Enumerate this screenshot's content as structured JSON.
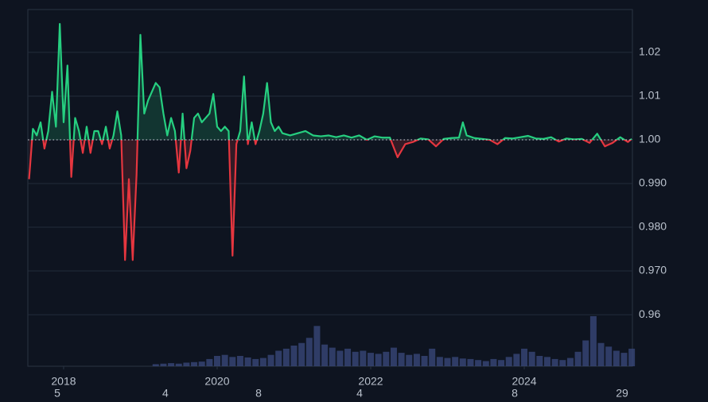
{
  "chart_data": {
    "type": "baseline-area",
    "baseline": 1,
    "color_up": "#26cf80",
    "color_down": "#e5363f",
    "grid": true,
    "xlim": [
      2017.534,
      2025.409
    ],
    "ylim": [
      0.9482,
      1.0298
    ],
    "yticks": [
      0.96,
      {
        "value": 0.97,
        "label": "0.970"
      },
      {
        "value": 0.98,
        "label": "0.980"
      },
      {
        "value": 0.99,
        "label": "0.990"
      },
      {
        "value": 1,
        "label": "1.00"
      },
      1.01,
      1.02
    ],
    "xticks": [
      2018,
      2020,
      2022,
      2024
    ],
    "xticks_minor": [
      {
        "value": 2017.917,
        "label": "5"
      },
      {
        "value": 2019.326,
        "label": "4"
      },
      {
        "value": 2020.539,
        "label": "8"
      },
      {
        "value": 2021.855,
        "label": "4"
      },
      {
        "value": 2023.876,
        "label": "8"
      },
      {
        "value": 2025.275,
        "label": "29"
      }
    ],
    "x": [
      2017.55,
      2017.6,
      2017.65,
      2017.7,
      2017.75,
      2017.8,
      2017.85,
      2017.9,
      2017.95,
      2018.0,
      2018.05,
      2018.1,
      2018.15,
      2018.2,
      2018.25,
      2018.3,
      2018.35,
      2018.4,
      2018.45,
      2018.5,
      2018.55,
      2018.6,
      2018.65,
      2018.7,
      2018.75,
      2018.8,
      2018.85,
      2018.9,
      2018.95,
      2019.0,
      2019.05,
      2019.1,
      2019.15,
      2019.2,
      2019.25,
      2019.3,
      2019.35,
      2019.4,
      2019.45,
      2019.5,
      2019.55,
      2019.6,
      2019.65,
      2019.7,
      2019.75,
      2019.8,
      2019.85,
      2019.9,
      2019.95,
      2020.0,
      2020.05,
      2020.1,
      2020.15,
      2020.2,
      2020.25,
      2020.3,
      2020.35,
      2020.4,
      2020.45,
      2020.5,
      2020.55,
      2020.6,
      2020.65,
      2020.7,
      2020.75,
      2020.8,
      2020.85,
      2020.95,
      2021.05,
      2021.15,
      2021.25,
      2021.35,
      2021.45,
      2021.55,
      2021.65,
      2021.75,
      2021.85,
      2021.95,
      2022.05,
      2022.15,
      2022.25,
      2022.35,
      2022.45,
      2022.55,
      2022.65,
      2022.75,
      2022.85,
      2022.95,
      2023.05,
      2023.15,
      2023.2,
      2023.25,
      2023.35,
      2023.45,
      2023.55,
      2023.65,
      2023.75,
      2023.85,
      2023.95,
      2024.05,
      2024.15,
      2024.25,
      2024.35,
      2024.45,
      2024.55,
      2024.65,
      2024.75,
      2024.85,
      2024.95,
      2025.05,
      2025.15,
      2025.25,
      2025.35,
      2025.4
    ],
    "values": [
      0.991,
      1.0025,
      1.001,
      1.004,
      0.998,
      1.002,
      1.011,
      1.003,
      1.0265,
      1.004,
      1.017,
      0.9915,
      1.005,
      1.002,
      0.997,
      1.003,
      0.997,
      1.002,
      1.002,
      0.999,
      1.003,
      0.998,
      1.001,
      1.0065,
      1.001,
      0.9725,
      0.991,
      0.9725,
      0.992,
      1.024,
      1.006,
      1.009,
      1.011,
      1.013,
      1.012,
      1.006,
      1.001,
      1.005,
      1.002,
      0.9925,
      1.006,
      0.9935,
      0.9975,
      1.005,
      1.006,
      1.004,
      1.005,
      1.006,
      1.0105,
      1.003,
      1.002,
      1.003,
      1.002,
      0.9735,
      0.999,
      1.002,
      1.0145,
      0.999,
      1.004,
      0.999,
      1.002,
      1.006,
      1.013,
      1.004,
      1.002,
      1.003,
      1.0015,
      1.001,
      1.0015,
      1.002,
      1.001,
      1.0008,
      1.001,
      1.0006,
      1.001,
      1.0005,
      1.001,
      1.0,
      1.0008,
      1.0005,
      1.0005,
      0.996,
      0.999,
      0.9995,
      1.0003,
      1.0001,
      0.9985,
      1.0002,
      1.0004,
      1.0005,
      1.004,
      1.001,
      1.0004,
      1.0002,
      1.0,
      0.999,
      1.0004,
      1.0003,
      1.0006,
      1.0009,
      1.0003,
      1.0002,
      1.0006,
      0.9996,
      1.0003,
      1.0001,
      1.0002,
      0.9993,
      1.0014,
      0.9985,
      0.9993,
      1.0006,
      0.9995,
      1.0002
    ],
    "volume_lim": [
      0,
      100
    ],
    "volume": {
      "color": "#3b4a7e",
      "x": [
        2019.2,
        2019.3,
        2019.4,
        2019.5,
        2019.6,
        2019.7,
        2019.8,
        2019.9,
        2020.0,
        2020.1,
        2020.2,
        2020.3,
        2020.4,
        2020.5,
        2020.6,
        2020.7,
        2020.8,
        2020.9,
        2021.0,
        2021.1,
        2021.2,
        2021.3,
        2021.4,
        2021.5,
        2021.6,
        2021.7,
        2021.8,
        2021.9,
        2022.0,
        2022.1,
        2022.2,
        2022.3,
        2022.4,
        2022.5,
        2022.6,
        2022.7,
        2022.8,
        2022.9,
        2023.0,
        2023.1,
        2023.2,
        2023.3,
        2023.4,
        2023.5,
        2023.6,
        2023.7,
        2023.8,
        2023.9,
        2024.0,
        2024.1,
        2024.2,
        2024.3,
        2024.4,
        2024.5,
        2024.6,
        2024.7,
        2024.8,
        2024.9,
        2025.0,
        2025.1,
        2025.2,
        2025.3,
        2025.4
      ],
      "values": [
        4,
        5,
        6,
        5,
        7,
        8,
        9,
        14,
        20,
        22,
        18,
        20,
        17,
        14,
        16,
        22,
        30,
        34,
        40,
        45,
        55,
        78,
        42,
        36,
        30,
        34,
        28,
        30,
        26,
        24,
        28,
        36,
        26,
        22,
        24,
        20,
        34,
        18,
        16,
        18,
        15,
        14,
        12,
        10,
        14,
        12,
        18,
        24,
        34,
        28,
        20,
        18,
        14,
        12,
        16,
        28,
        50,
        97,
        45,
        38,
        30,
        26,
        34
      ]
    }
  }
}
